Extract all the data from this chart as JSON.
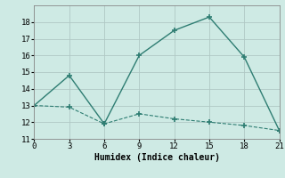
{
  "xlabel": "Humidex (Indice chaleur)",
  "background_color": "#ceeae4",
  "grid_color": "#b0c8c4",
  "line_color": "#2e7d72",
  "line1_x": [
    0,
    3,
    6,
    9,
    12,
    15,
    18,
    21
  ],
  "line1_y": [
    13.0,
    14.8,
    11.9,
    16.0,
    17.5,
    18.3,
    15.9,
    11.5
  ],
  "line2_x": [
    0,
    3,
    6,
    9,
    12,
    15,
    18,
    21
  ],
  "line2_y": [
    13.0,
    12.9,
    11.9,
    12.5,
    12.2,
    12.0,
    11.8,
    11.5
  ],
  "xlim": [
    0,
    21
  ],
  "ylim": [
    11,
    19
  ],
  "xticks": [
    0,
    3,
    6,
    9,
    12,
    15,
    18,
    21
  ],
  "yticks": [
    11,
    12,
    13,
    14,
    15,
    16,
    17,
    18
  ]
}
